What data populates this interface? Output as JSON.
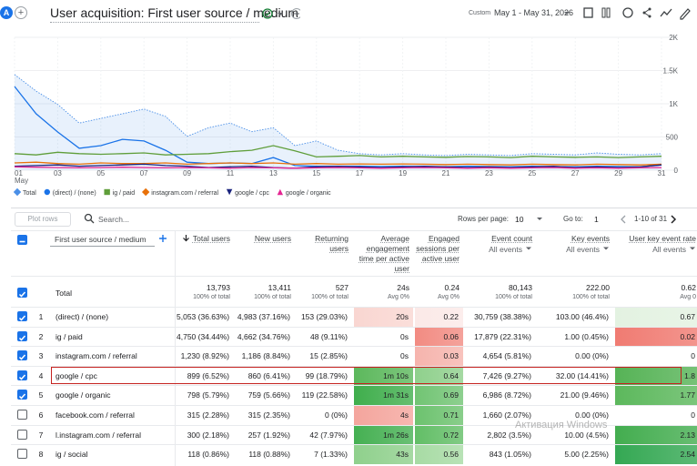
{
  "header": {
    "avatar": "A",
    "title": "User acquisition: First user source / medium",
    "date_label": "Custom",
    "date_range": "May 1 - May 31, 2026"
  },
  "chart_data": {
    "type": "line",
    "categories": [
      "01",
      null,
      "03",
      null,
      "05",
      null,
      "07",
      null,
      "09",
      null,
      "11",
      null,
      "13",
      null,
      "15",
      null,
      "17",
      null,
      "19",
      null,
      "21",
      null,
      "23",
      null,
      "25",
      null,
      "27",
      null,
      "29",
      null,
      "31"
    ],
    "x_sublabel": "May",
    "ylim": [
      0,
      2000
    ],
    "yticks": [
      {
        "value": 0,
        "label": "0"
      },
      {
        "value": 500,
        "label": "500"
      },
      {
        "value": 1000,
        "label": "1K"
      },
      {
        "value": 1500,
        "label": "1.5K"
      },
      {
        "value": 2000,
        "label": "2K"
      }
    ],
    "grid": true,
    "series": [
      {
        "name": "Total",
        "color": "#4a8fe7",
        "marker": "diamond",
        "area": true,
        "values": [
          1440,
          1190,
          990,
          710,
          780,
          850,
          920,
          810,
          510,
          640,
          710,
          580,
          640,
          370,
          440,
          300,
          250,
          230,
          250,
          230,
          220,
          240,
          230,
          220,
          250,
          240,
          230,
          260,
          240,
          230,
          250
        ]
      },
      {
        "name": "(direct) / (none)",
        "color": "#1a73e8",
        "marker": "circle",
        "values": [
          1260,
          850,
          575,
          330,
          370,
          465,
          440,
          300,
          120,
          100,
          110,
          100,
          190,
          70,
          60,
          60,
          60,
          55,
          60,
          55,
          50,
          60,
          55,
          50,
          60,
          55,
          50,
          60,
          55,
          50,
          80
        ]
      },
      {
        "name": "ig / paid",
        "color": "#5f9e3a",
        "marker": "square",
        "values": [
          250,
          230,
          270,
          250,
          240,
          250,
          260,
          230,
          240,
          250,
          280,
          300,
          370,
          290,
          200,
          210,
          220,
          200,
          210,
          200,
          195,
          205,
          200,
          190,
          210,
          200,
          195,
          200,
          190,
          200,
          210
        ]
      },
      {
        "name": "instagram.com / referral",
        "color": "#e8710a",
        "marker": "diamond",
        "values": [
          110,
          120,
          100,
          90,
          110,
          100,
          100,
          110,
          90,
          100,
          110,
          100,
          110,
          90,
          100,
          90,
          95,
          90,
          95,
          90,
          85,
          90,
          85,
          80,
          90,
          85,
          80,
          90,
          85,
          80,
          90
        ]
      },
      {
        "name": "google / cpc",
        "color": "#1a237e",
        "marker": "triangle-down",
        "values": [
          60,
          70,
          80,
          60,
          70,
          80,
          90,
          70,
          60,
          40,
          50,
          60,
          40,
          30,
          50,
          60,
          50,
          40,
          50,
          60,
          50,
          40,
          50,
          40,
          50,
          60,
          40,
          50,
          40,
          50,
          80
        ]
      },
      {
        "name": "google / organic",
        "color": "#e52592",
        "marker": "triangle-up",
        "values": [
          50,
          45,
          40,
          35,
          40,
          45,
          40,
          35,
          40,
          35,
          30,
          40,
          35,
          30,
          35,
          40,
          35,
          30,
          35,
          40,
          35,
          30,
          35,
          30,
          35,
          40,
          30,
          35,
          30,
          35,
          40
        ]
      }
    ]
  },
  "table": {
    "toolbar": {
      "plot_rows": "Plot rows",
      "search": "Search...",
      "rows_per_page_label": "Rows per page:",
      "rows_per_page": "10",
      "goto_label": "Go to:",
      "goto": "1",
      "pagination": "1-10 of 31"
    },
    "dimension": "First user source / medium",
    "columns": [
      {
        "title": "Total users"
      },
      {
        "title": "New users"
      },
      {
        "title": "Returning users"
      },
      {
        "title": "Average engagement time per active user"
      },
      {
        "title": "Engaged sessions per active user"
      },
      {
        "title": "Event count",
        "filter": "All events"
      },
      {
        "title": "Key events",
        "filter": "All events"
      },
      {
        "title": "User key event rate",
        "filter": "All events"
      }
    ],
    "totals": {
      "label": "Total",
      "cells": [
        [
          "13,793",
          "100% of total"
        ],
        [
          "13,411",
          "100% of total"
        ],
        [
          "527",
          "100% of total"
        ],
        [
          "24s",
          "Avg 0%"
        ],
        [
          "0.24",
          "Avg 0%"
        ],
        [
          "80,143",
          "100% of total"
        ],
        [
          "222.00",
          "100% of total"
        ],
        [
          "0.62",
          "Avg 0"
        ]
      ]
    },
    "rows": [
      {
        "index": "1",
        "name": "(direct) / (none)",
        "checked": true,
        "cells": [
          "5,053 (36.63%)",
          "4,983 (37.16%)",
          "153 (29.03%)",
          "20s",
          "0.22",
          "30,759 (38.38%)",
          "103.00 (46.4%)",
          "0.67"
        ],
        "heat": [
          null,
          null,
          null,
          "#f9d6d1",
          "#fbe9e7",
          null,
          null,
          "#e3f2e1"
        ]
      },
      {
        "index": "2",
        "name": "ig / paid",
        "checked": true,
        "cells": [
          "4,750 (34.44%)",
          "4,662 (34.76%)",
          "48 (9.11%)",
          "0s",
          "0.06",
          "17,879 (22.31%)",
          "1.00 (0.45%)",
          "0.02"
        ],
        "heat": [
          null,
          null,
          null,
          null,
          "#f28b82",
          null,
          null,
          "#f07b72"
        ]
      },
      {
        "index": "3",
        "name": "instagram.com / referral",
        "checked": true,
        "cells": [
          "1,230 (8.92%)",
          "1,186 (8.84%)",
          "15 (2.85%)",
          "0s",
          "0.03",
          "4,654 (5.81%)",
          "0.00 (0%)",
          "0"
        ],
        "heat": [
          null,
          null,
          null,
          null,
          "#f6b4ad",
          null,
          null,
          null
        ]
      },
      {
        "index": "4",
        "name": "google / cpc",
        "checked": true,
        "highlight": "#c5221f",
        "cells": [
          "899 (6.52%)",
          "860 (6.41%)",
          "99 (18.79%)",
          "1m 10s",
          "0.64",
          "7,426 (9.27%)",
          "32.00 (14.41%)",
          "1.8"
        ],
        "heat": [
          null,
          null,
          null,
          "#5cb85c",
          "#8fd08c",
          null,
          null,
          "#56b356"
        ]
      },
      {
        "index": "5",
        "name": "google / organic",
        "checked": true,
        "cells": [
          "798 (5.79%)",
          "759 (5.66%)",
          "119 (22.58%)",
          "1m 31s",
          "0.69",
          "6,986 (8.72%)",
          "21.00 (9.46%)",
          "1.77"
        ],
        "heat": [
          null,
          null,
          null,
          "#3fae4c",
          "#71c473",
          null,
          null,
          "#5cb85c"
        ]
      },
      {
        "index": "6",
        "name": "facebook.com / referral",
        "checked": false,
        "cells": [
          "315 (2.28%)",
          "315 (2.35%)",
          "0 (0%)",
          "4s",
          "0.71",
          "1,660 (2.07%)",
          "0.00 (0%)",
          "0"
        ],
        "heat": [
          null,
          null,
          null,
          "#f4a59d",
          "#6cc26e",
          null,
          null,
          null
        ]
      },
      {
        "index": "7",
        "name": "l.instagram.com / referral",
        "checked": false,
        "cells": [
          "300 (2.18%)",
          "257 (1.92%)",
          "42 (7.97%)",
          "1m 26s",
          "0.72",
          "2,802 (3.5%)",
          "10.00 (4.5%)",
          "2.13"
        ],
        "heat": [
          null,
          null,
          null,
          "#45b052",
          "#62be66",
          null,
          null,
          "#43ad4f"
        ]
      },
      {
        "index": "8",
        "name": "ig / social",
        "checked": false,
        "cells": [
          "118 (0.86%)",
          "118 (0.88%)",
          "7 (1.33%)",
          "43s",
          "0.56",
          "843 (1.05%)",
          "5.00 (2.25%)",
          "2.54"
        ],
        "heat": [
          null,
          null,
          null,
          "#8fd08c",
          "#a7dba4",
          null,
          null,
          "#34a853"
        ]
      }
    ]
  },
  "watermark": "Активация Windows"
}
